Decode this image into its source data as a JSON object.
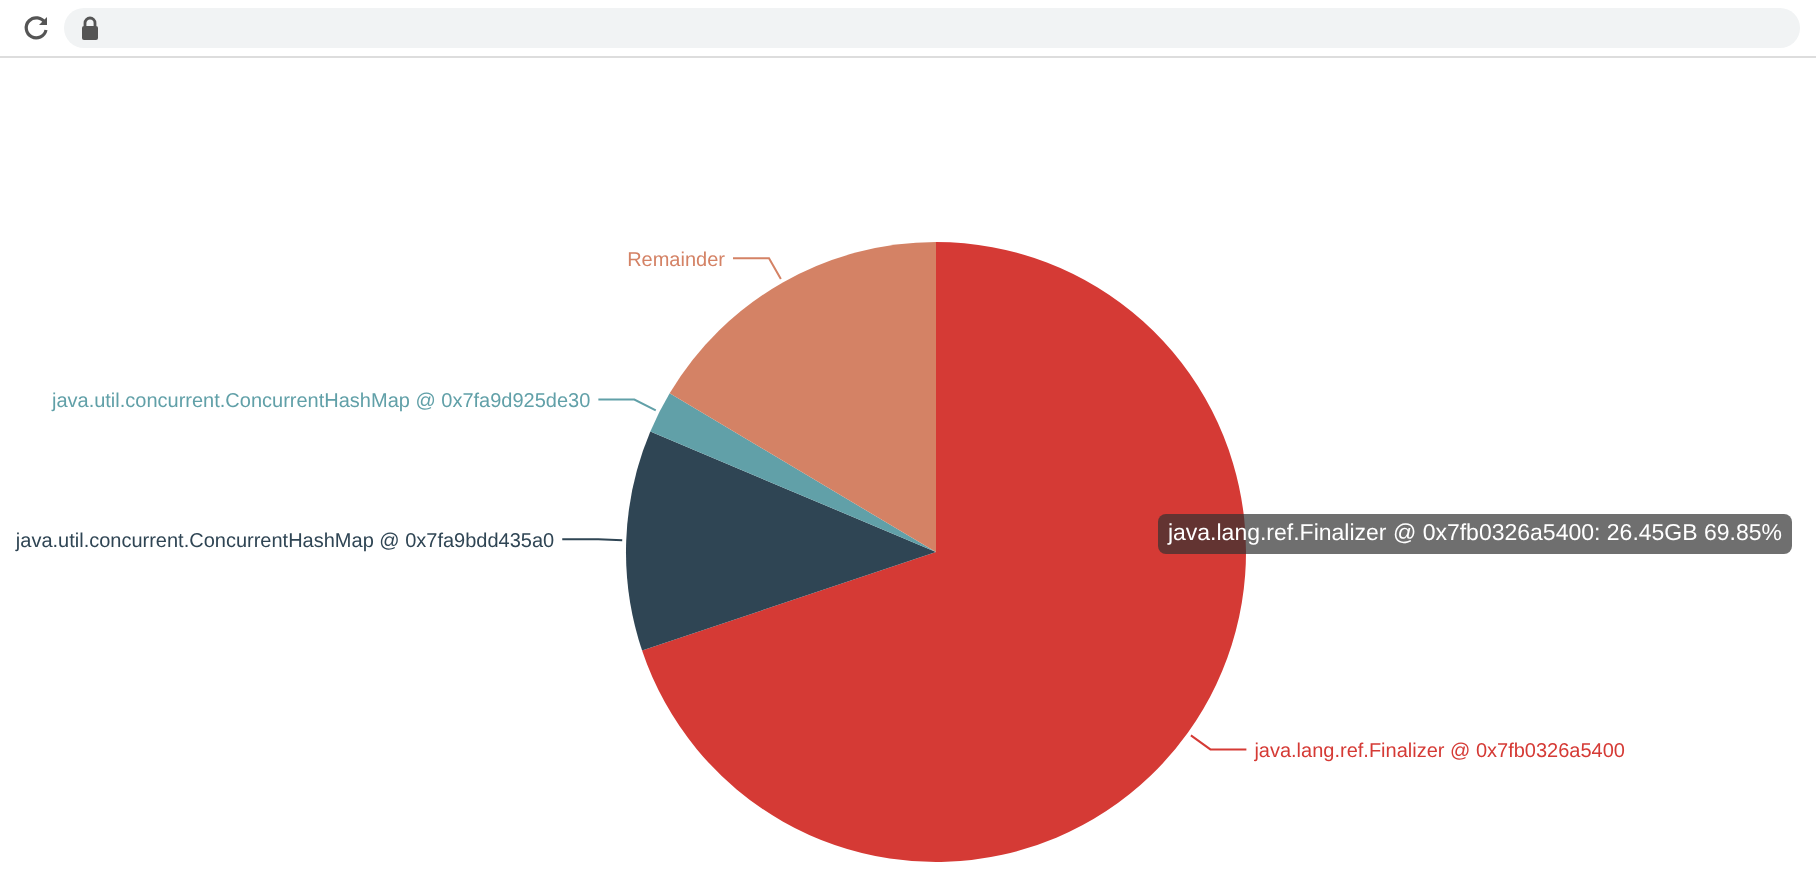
{
  "chart_data": {
    "type": "pie",
    "categories": [
      "java.lang.ref.Finalizer @ 0x7fb0326a5400",
      "java.util.concurrent.ConcurrentHashMap @ 0x7fa9bdd435a0",
      "java.util.concurrent.ConcurrentHashMap @ 0x7fa9d925de30",
      "Remainder"
    ],
    "values": [
      69.85,
      11.5,
      2.2,
      16.45
    ],
    "colors": [
      "#d53a35",
      "#2f4554",
      "#61a0a8",
      "#d48265"
    ],
    "annotations": [
      "java.lang.ref.Finalizer @ 0x7fb0326a5400: 26.45GB 69.85%"
    ]
  }
}
